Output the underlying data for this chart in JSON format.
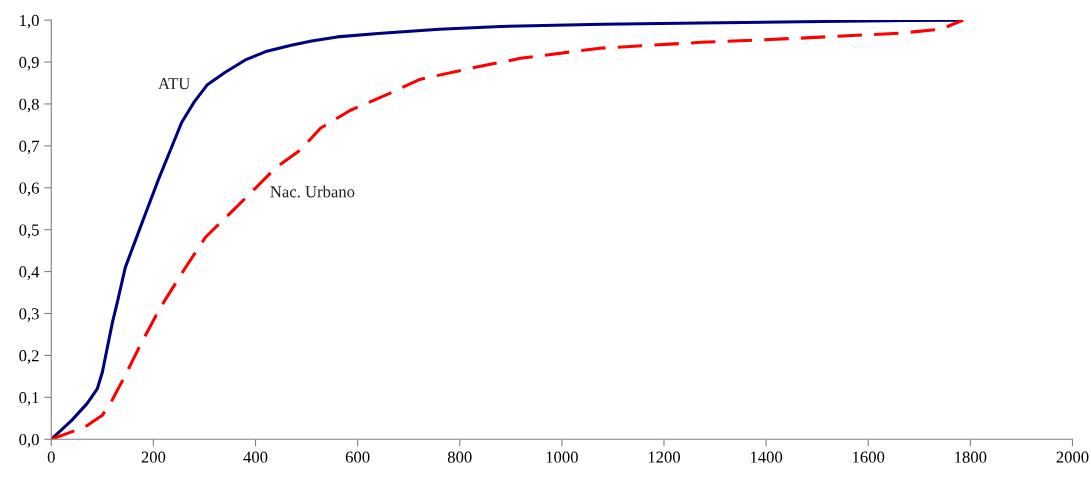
{
  "chart_data": {
    "type": "line",
    "xlim": [
      0,
      2000
    ],
    "ylim": [
      0,
      1
    ],
    "xticks": [
      0,
      200,
      400,
      600,
      800,
      1000,
      1200,
      1400,
      1600,
      1800,
      2000
    ],
    "yticks": [
      {
        "value": 0,
        "label": "0,0"
      },
      {
        "value": 0.1,
        "label": "0,1"
      },
      {
        "value": 0.2,
        "label": "0,2"
      },
      {
        "value": 0.3,
        "label": "0,3"
      },
      {
        "value": 0.4,
        "label": "0,4"
      },
      {
        "value": 0.5,
        "label": "0,5"
      },
      {
        "value": 0.6,
        "label": "0,6"
      },
      {
        "value": 0.7,
        "label": "0,7"
      },
      {
        "value": 0.8,
        "label": "0,8"
      },
      {
        "value": 0.9,
        "label": "0,9"
      },
      {
        "value": 1.0,
        "label": "1,0"
      }
    ],
    "grid": false,
    "legend": false,
    "marker": "none",
    "series": [
      {
        "name": "ATU",
        "color": "#000080",
        "line_style": "solid",
        "x": [
          0,
          40,
          70,
          90,
          100,
          110,
          120,
          130,
          145,
          165,
          185,
          210,
          235,
          255,
          280,
          305,
          340,
          380,
          420,
          470,
          510,
          560,
          640,
          760,
          880,
          1080,
          1270,
          1470,
          1680,
          1780
        ],
        "values": [
          0,
          0.045,
          0.085,
          0.12,
          0.16,
          0.22,
          0.28,
          0.33,
          0.41,
          0.475,
          0.54,
          0.62,
          0.695,
          0.755,
          0.805,
          0.845,
          0.875,
          0.905,
          0.925,
          0.94,
          0.95,
          0.96,
          0.968,
          0.978,
          0.985,
          0.99,
          0.993,
          0.996,
          0.999,
          1.0
        ]
      },
      {
        "name": "Nac. Urbano",
        "color": "#ff0000",
        "line_style": "dashed",
        "x": [
          0,
          67,
          100,
          119,
          143,
          174,
          213,
          262,
          302,
          351,
          390,
          439,
          488,
          527,
          586,
          664,
          723,
          821,
          919,
          1075,
          1272,
          1467,
          1663,
          1741,
          1786
        ],
        "values": [
          0,
          0.03,
          0.057,
          0.093,
          0.148,
          0.224,
          0.313,
          0.408,
          0.482,
          0.54,
          0.587,
          0.647,
          0.69,
          0.742,
          0.785,
          0.826,
          0.859,
          0.885,
          0.909,
          0.933,
          0.947,
          0.957,
          0.969,
          0.978,
          1.0
        ]
      }
    ]
  }
}
